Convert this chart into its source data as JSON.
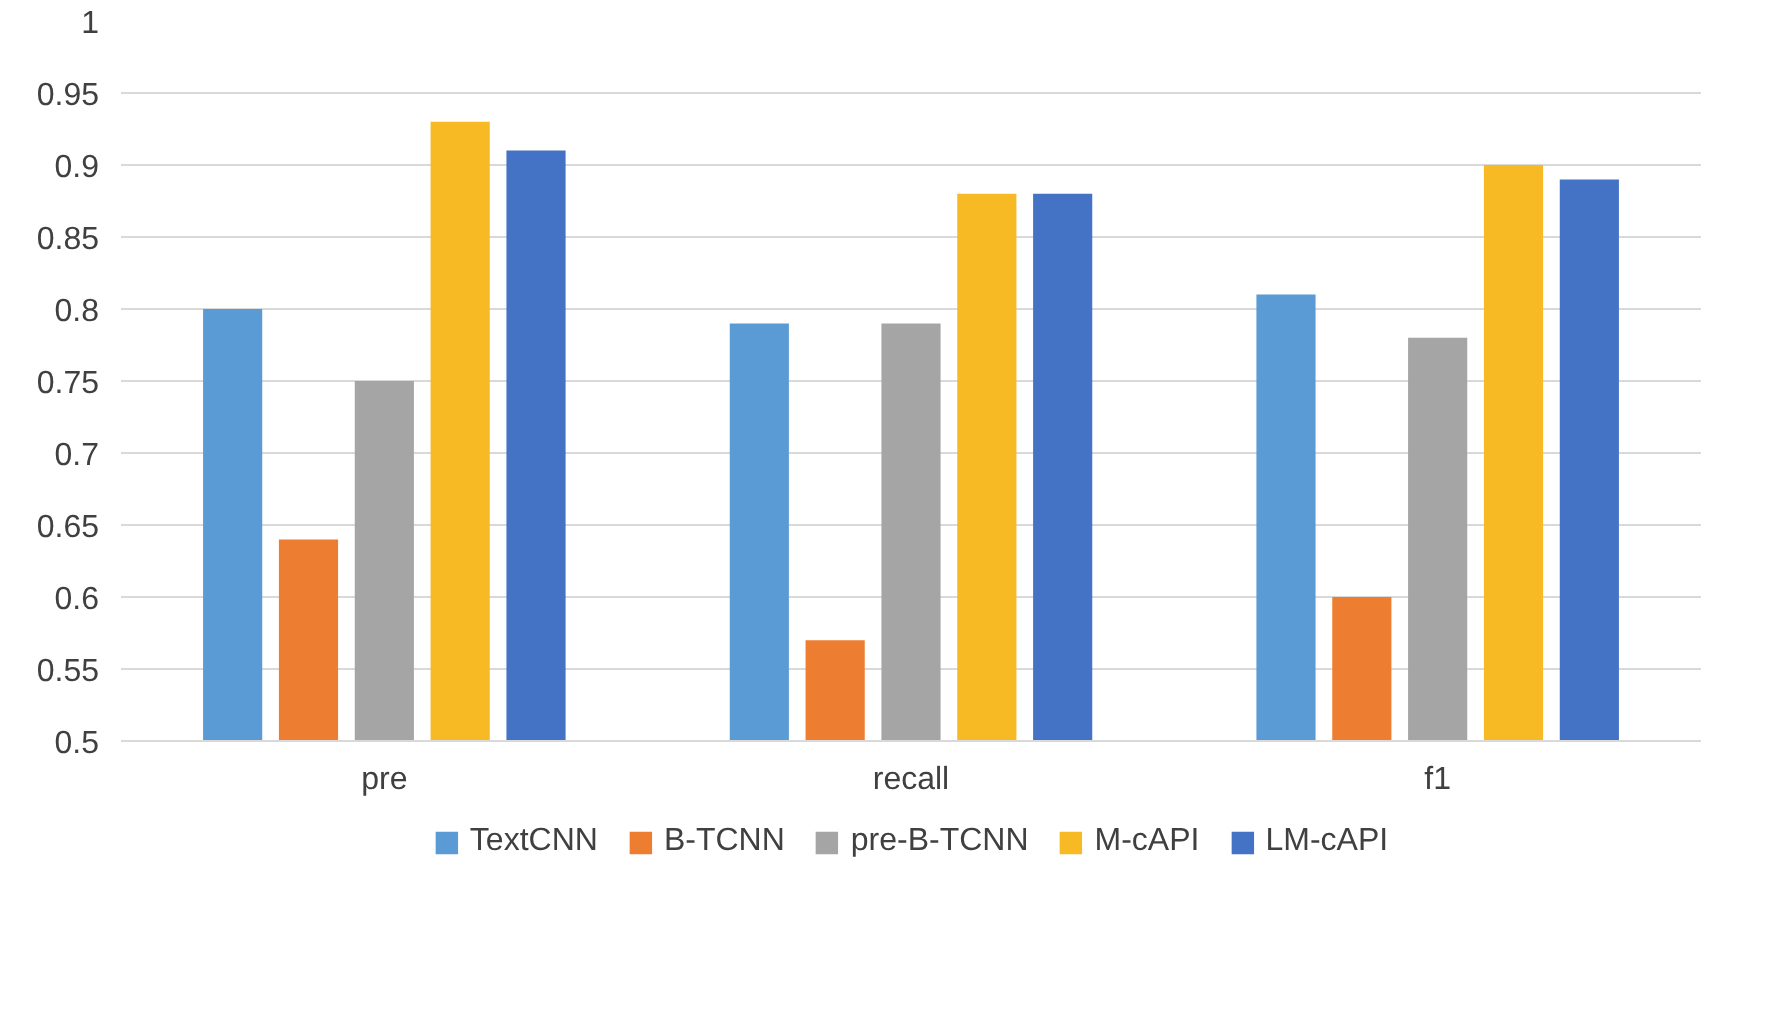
{
  "chart_data": {
    "type": "bar",
    "categories": [
      "pre",
      "recall",
      "f1"
    ],
    "series": [
      {
        "name": "TextCNN",
        "color": "#5b9bd5",
        "values": [
          0.8,
          0.79,
          0.81
        ]
      },
      {
        "name": "B-TCNN",
        "color": "#ed7d31",
        "values": [
          0.64,
          0.57,
          0.6
        ]
      },
      {
        "name": "pre-B-TCNN",
        "color": "#a5a5a5",
        "values": [
          0.75,
          0.79,
          0.78
        ]
      },
      {
        "name": "M-cAPI",
        "color": "#f7b924",
        "values": [
          0.93,
          0.88,
          0.9
        ]
      },
      {
        "name": "LM-cAPI",
        "color": "#4472c4",
        "values": [
          0.91,
          0.88,
          0.89
        ]
      }
    ],
    "ylim": [
      0.5,
      1
    ],
    "yticks": [
      0.5,
      0.55,
      0.6,
      0.65,
      0.7,
      0.75,
      0.8,
      0.85,
      0.9,
      0.95,
      1
    ],
    "grid": "y",
    "legend": "bottom"
  }
}
